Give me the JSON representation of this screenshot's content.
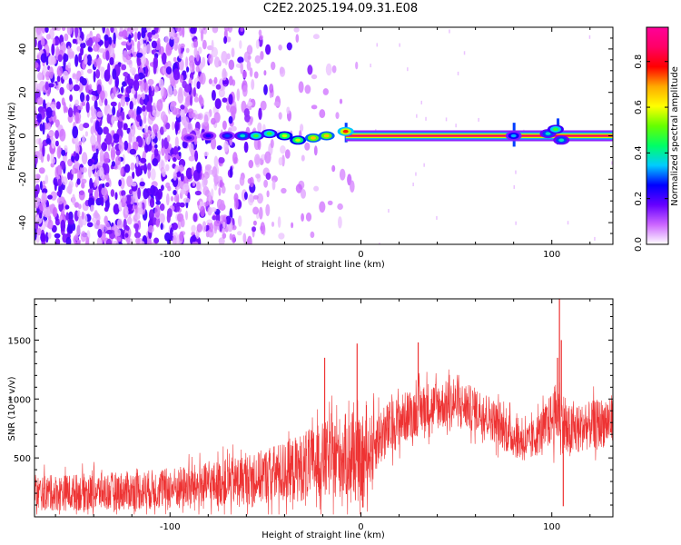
{
  "title": "C2E2.2025.194.09.31.E08",
  "chart_data": [
    {
      "type": "heatmap",
      "xlabel": "Height of straight line (km)",
      "ylabel": "Frequency (Hz)",
      "xlim": [
        -171,
        132
      ],
      "ylim": [
        -50,
        50
      ],
      "x_ticks": [
        -100,
        0,
        100
      ],
      "y_ticks": [
        -40,
        -20,
        0,
        20,
        40
      ],
      "colorbar": {
        "label": "Normalized spectral amplitude",
        "range": [
          0.0,
          0.95
        ],
        "ticks": [
          0.0,
          0.2,
          0.4,
          0.6,
          0.8
        ],
        "tick_labels": [
          "0.0",
          "0.2",
          "0.4",
          "0.6",
          "0.8"
        ],
        "colors": [
          "#ffffff",
          "#cc66ff",
          "#6600ff",
          "#0000ff",
          "#00ccff",
          "#00ff66",
          "#66ff00",
          "#ffff00",
          "#ffaa00",
          "#ff0000",
          "#ff0066",
          "#ff0099"
        ]
      },
      "noise_region": {
        "x_from": -171,
        "x_to": 0,
        "density_falloff_start": -105,
        "density_falloff_end": -40
      },
      "carrier_line": {
        "y": 0,
        "x_from": -8,
        "x_to": 132,
        "amplitude": 0.9
      },
      "carrier_blobs": [
        {
          "x": -90,
          "y": -1,
          "amp": 0.2
        },
        {
          "x": -80,
          "y": 0,
          "amp": 0.25
        },
        {
          "x": -70,
          "y": 0,
          "amp": 0.3
        },
        {
          "x": -62,
          "y": 0,
          "amp": 0.4
        },
        {
          "x": -55,
          "y": 0,
          "amp": 0.5
        },
        {
          "x": -48,
          "y": 1,
          "amp": 0.5
        },
        {
          "x": -40,
          "y": 0,
          "amp": 0.6
        },
        {
          "x": -33,
          "y": -2,
          "amp": 0.6
        },
        {
          "x": -25,
          "y": -1,
          "amp": 0.7
        },
        {
          "x": -18,
          "y": 0,
          "amp": 0.7
        },
        {
          "x": -8,
          "y": 2,
          "amp": 0.8
        },
        {
          "x": 80,
          "y": 0,
          "amp": 0.35
        },
        {
          "x": 98,
          "y": 1,
          "amp": 0.4
        },
        {
          "x": 102,
          "y": 3,
          "amp": 0.5
        },
        {
          "x": 105,
          "y": -2,
          "amp": 0.4
        }
      ],
      "vertical_streaks": [
        {
          "x": -8,
          "y_from": -3,
          "y_to": 6
        },
        {
          "x": 80,
          "y_from": -5,
          "y_to": 6
        },
        {
          "x": 103,
          "y_from": -4,
          "y_to": 8
        }
      ]
    },
    {
      "type": "line",
      "xlabel": "Height of straight line (km)",
      "ylabel": "SNR (10 * v/v)",
      "xlim": [
        -171,
        132
      ],
      "ylim": [
        0,
        1850
      ],
      "x_ticks": [
        -100,
        0,
        100
      ],
      "y_ticks": [
        500,
        1000,
        1500
      ],
      "series_color": "#ee3333",
      "envelope": [
        {
          "x": -171,
          "mean": 200,
          "spread": 150
        },
        {
          "x": -140,
          "mean": 210,
          "spread": 160
        },
        {
          "x": -110,
          "mean": 230,
          "spread": 170
        },
        {
          "x": -80,
          "mean": 270,
          "spread": 190
        },
        {
          "x": -55,
          "mean": 330,
          "spread": 220
        },
        {
          "x": -35,
          "mean": 400,
          "spread": 280
        },
        {
          "x": -20,
          "mean": 480,
          "spread": 320
        },
        {
          "x": -8,
          "mean": 520,
          "spread": 360
        },
        {
          "x": 0,
          "mean": 450,
          "spread": 350
        },
        {
          "x": 8,
          "mean": 650,
          "spread": 260
        },
        {
          "x": 20,
          "mean": 820,
          "spread": 220
        },
        {
          "x": 35,
          "mean": 940,
          "spread": 210
        },
        {
          "x": 50,
          "mean": 960,
          "spread": 200
        },
        {
          "x": 65,
          "mean": 880,
          "spread": 190
        },
        {
          "x": 78,
          "mean": 700,
          "spread": 180
        },
        {
          "x": 88,
          "mean": 620,
          "spread": 170
        },
        {
          "x": 97,
          "mean": 780,
          "spread": 190
        },
        {
          "x": 104,
          "mean": 900,
          "spread": 300
        },
        {
          "x": 108,
          "mean": 700,
          "spread": 250
        },
        {
          "x": 116,
          "mean": 760,
          "spread": 200
        },
        {
          "x": 132,
          "mean": 820,
          "spread": 220
        }
      ],
      "spikes": [
        {
          "x": -19,
          "y": 1350
        },
        {
          "x": -2,
          "y": 1470
        },
        {
          "x": 1,
          "y": 80
        },
        {
          "x": 30,
          "y": 1480
        },
        {
          "x": 103,
          "y": 1350
        },
        {
          "x": 104,
          "y": 1850
        },
        {
          "x": 105,
          "y": 1500
        },
        {
          "x": 106,
          "y": 90
        }
      ]
    }
  ]
}
